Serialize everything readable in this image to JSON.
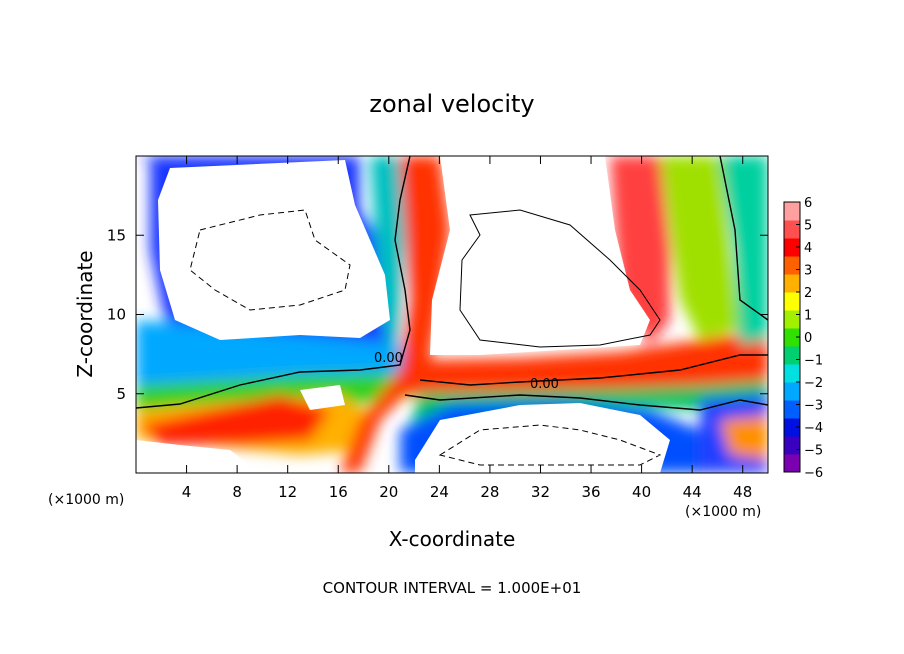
{
  "chart_data": {
    "type": "heatmap",
    "title": "zonal velocity",
    "xlabel": "X-coordinate",
    "ylabel": "Z-coordinate",
    "x_unit": "(×1000 m)",
    "y_unit": "(×1000 m)",
    "xlim": [
      0,
      50
    ],
    "ylim": [
      0,
      20
    ],
    "x_ticks": [
      4,
      8,
      12,
      16,
      20,
      24,
      28,
      32,
      36,
      40,
      44,
      48
    ],
    "y_ticks": [
      5,
      10,
      15
    ],
    "colorbar": {
      "min": -6,
      "max": 6,
      "ticks": [
        6,
        5,
        4,
        3,
        2,
        1,
        0,
        -1,
        -2,
        -3,
        -4,
        -5,
        -6
      ],
      "colors": [
        "#7a00b0",
        "#3a00c0",
        "#0010e0",
        "#0060ff",
        "#00a8ff",
        "#00e0e0",
        "#00d070",
        "#30e000",
        "#a0f000",
        "#ffff00",
        "#ffb000",
        "#ff6000",
        "#ff0000",
        "#ff5050",
        "#ffa0a0"
      ]
    },
    "contour_labels": [
      "0.00",
      "0.00"
    ],
    "contour_interval_text": "CONTOUR INTERVAL = 1.000E+01",
    "grid": false
  },
  "icons": {
    "contour-line": "contour-line-icon"
  }
}
